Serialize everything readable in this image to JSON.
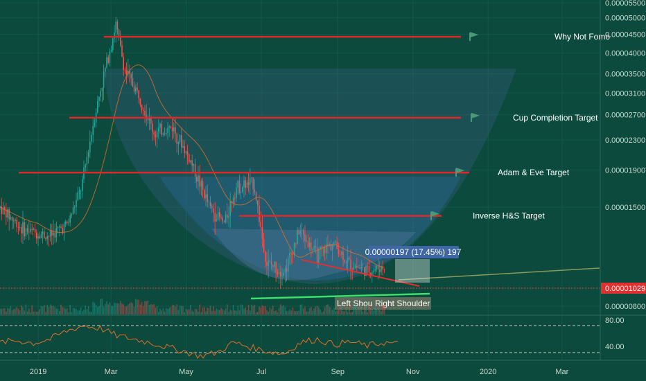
{
  "chart_data": {
    "type": "candlestick",
    "symbol_scale": "price",
    "y_ticks": [
      "0.00005500",
      "0.00005000",
      "0.00004500",
      "0.00004000",
      "0.00003500",
      "0.00003100",
      "0.00002700",
      "0.00002300",
      "0.00001900",
      "0.00001500",
      "0.00001029",
      "0.00000800"
    ],
    "x_ticks": [
      "2019",
      "Mar",
      "May",
      "Jul",
      "Sep",
      "Nov",
      "2020",
      "Mar"
    ],
    "current_price": "0.00001029",
    "levels": [
      {
        "label": "Why Not Fomo",
        "price": 4.43e-05
      },
      {
        "label": "Cup Completion Target",
        "price": 2.65e-05
      },
      {
        "label": "Adam & Eve Target",
        "price": 1.87e-05
      },
      {
        "label": "Inverse H&S Target",
        "price": 1.42e-05
      }
    ],
    "annotations": {
      "left_shoulder": "Left Shou",
      "right_shoulder": "Right Shoulder",
      "measure": "0.00000197 (17.45%) 197"
    },
    "price_series": [
      {
        "date": "2018-12-01",
        "price": 1.5e-05
      },
      {
        "date": "2018-12-20",
        "price": 1.3e-05
      },
      {
        "date": "2019-01-10",
        "price": 1.25e-05
      },
      {
        "date": "2019-01-25",
        "price": 1.35e-05
      },
      {
        "date": "2019-02-05",
        "price": 1.7e-05
      },
      {
        "date": "2019-02-15",
        "price": 2.6e-05
      },
      {
        "date": "2019-02-25",
        "price": 3.7e-05
      },
      {
        "date": "2019-03-05",
        "price": 4.8e-05
      },
      {
        "date": "2019-03-12",
        "price": 3.6e-05
      },
      {
        "date": "2019-03-25",
        "price": 3e-05
      },
      {
        "date": "2019-04-05",
        "price": 2.4e-05
      },
      {
        "date": "2019-04-20",
        "price": 2.5e-05
      },
      {
        "date": "2019-05-05",
        "price": 2e-05
      },
      {
        "date": "2019-05-20",
        "price": 1.5e-05
      },
      {
        "date": "2019-06-01",
        "price": 1.35e-05
      },
      {
        "date": "2019-06-10",
        "price": 1.7e-05
      },
      {
        "date": "2019-06-25",
        "price": 1.75e-05
      },
      {
        "date": "2019-07-05",
        "price": 1.05e-05
      },
      {
        "date": "2019-07-20",
        "price": 1e-05
      },
      {
        "date": "2019-08-01",
        "price": 1.3e-05
      },
      {
        "date": "2019-08-15",
        "price": 1.1e-05
      },
      {
        "date": "2019-08-28",
        "price": 1.2e-05
      },
      {
        "date": "2019-09-10",
        "price": 1.05e-05
      },
      {
        "date": "2019-09-25",
        "price": 1e-05
      },
      {
        "date": "2019-10-10",
        "price": 1.03e-05
      }
    ],
    "rsi": {
      "levels": [
        "80.00",
        "40.00"
      ],
      "values": [
        55,
        58,
        54,
        60,
        72,
        80,
        76,
        65,
        60,
        55,
        48,
        42,
        35,
        40,
        55,
        48,
        42,
        38,
        55,
        60,
        52,
        56,
        50,
        55,
        52
      ]
    }
  }
}
